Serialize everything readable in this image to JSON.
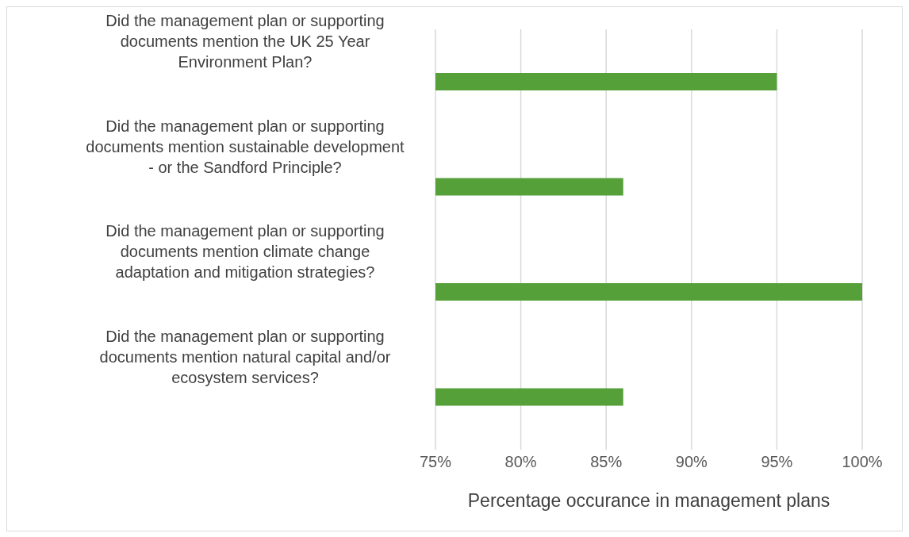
{
  "chart_data": {
    "type": "bar",
    "orientation": "horizontal",
    "xlabel": "Percentage occurance in management plans",
    "categories": [
      "Did the management plan or supporting documents mention the UK 25 Year Environment Plan?",
      "Did the management plan or supporting documents mention sustainable development - or the Sandford Principle?",
      "Did the management plan or supporting documents mention climate change adaptation and mitigation strategies?",
      "Did the management plan or supporting documents mention natural capital and/or ecosystem services?"
    ],
    "values": [
      95,
      86,
      100,
      86
    ],
    "color": "#56a03a",
    "xlim": [
      75,
      100
    ],
    "xticks": [
      {
        "value": 75,
        "label": "75%"
      },
      {
        "value": 80,
        "label": "80%"
      },
      {
        "value": 85,
        "label": "85%"
      },
      {
        "value": 90,
        "label": "90%"
      },
      {
        "value": 95,
        "label": "95%"
      },
      {
        "value": 100,
        "label": "100%"
      }
    ],
    "grid": "x",
    "legend": false
  }
}
